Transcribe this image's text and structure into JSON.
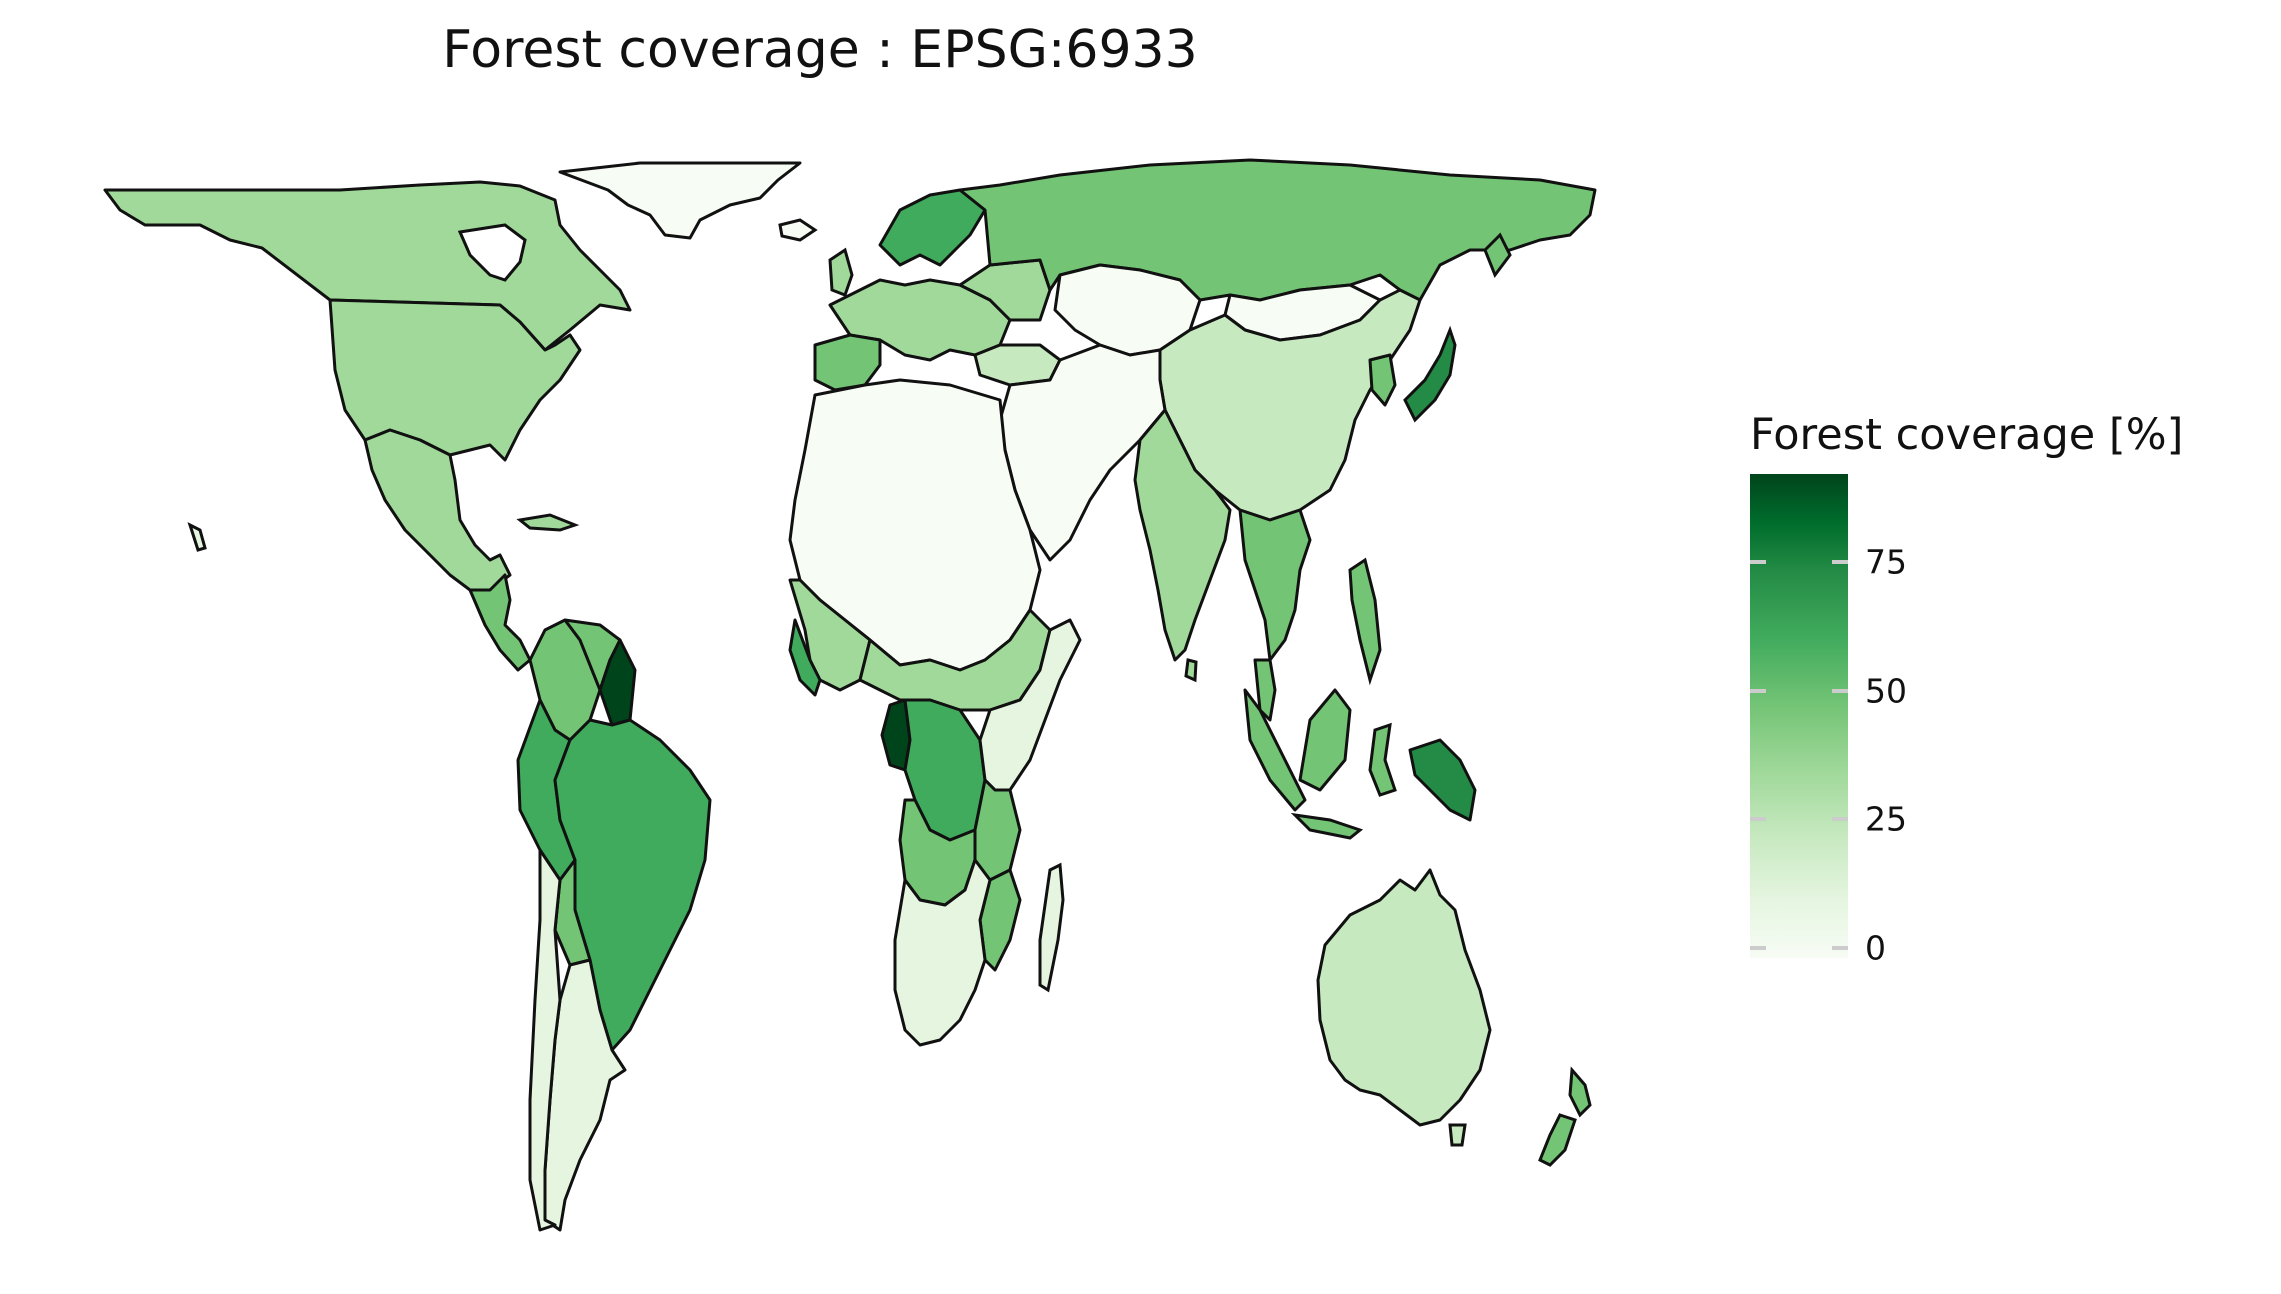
{
  "map": {
    "title": "Forest coverage : EPSG:6933"
  },
  "legend": {
    "title": "Forest coverage [%]",
    "ticks": [
      {
        "value": 0,
        "label": "0"
      },
      {
        "value": 25,
        "label": "25"
      },
      {
        "value": 50,
        "label": "50"
      },
      {
        "value": 75,
        "label": "75"
      }
    ],
    "range": [
      0,
      94
    ],
    "colors": [
      "#f7fcf5",
      "#e5f5e0",
      "#c7e9c0",
      "#a1d99b",
      "#74c476",
      "#41ab5d",
      "#238b45",
      "#006d2c",
      "#00441b"
    ]
  }
}
